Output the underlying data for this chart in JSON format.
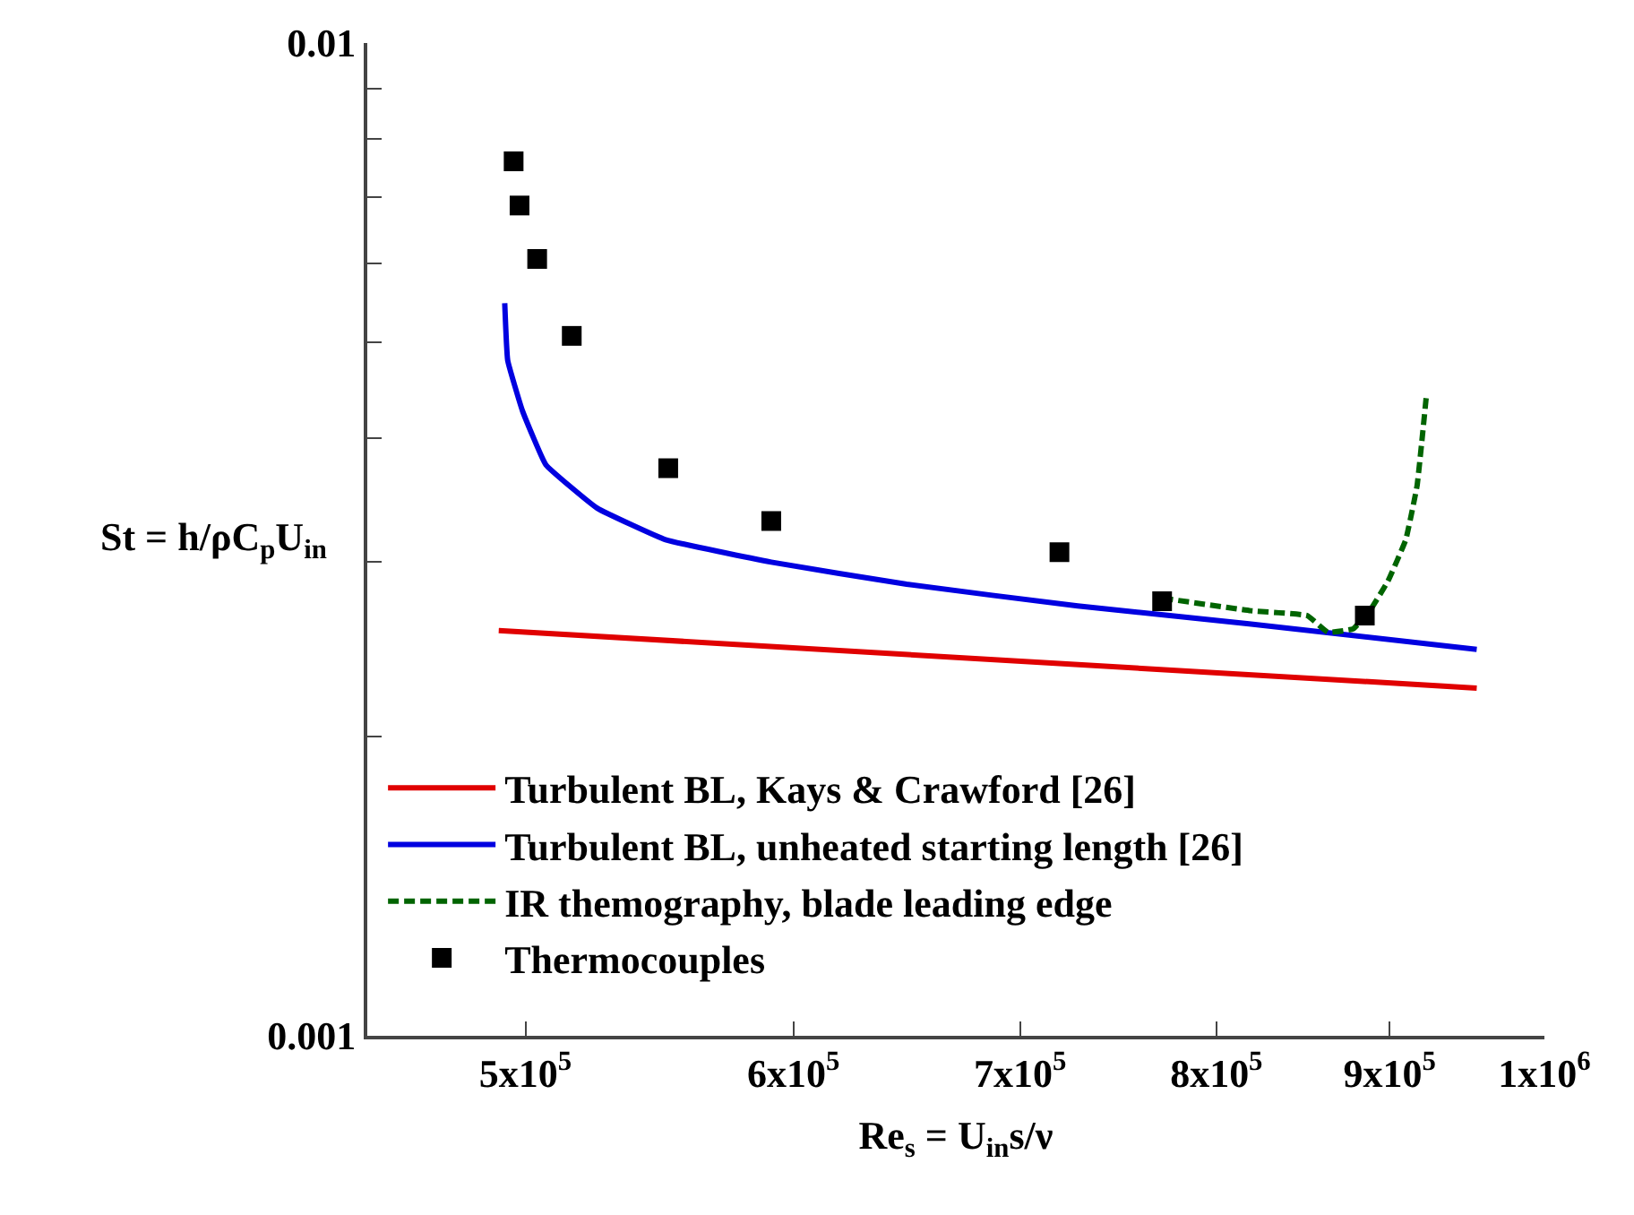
{
  "chart_data": {
    "type": "line",
    "xlabel": "Re$_{s}$ = U$_{in}$s/ν",
    "ylabel": "St = h/ρC$_{p}$U$_{in}$",
    "log": "xy",
    "legend": "bottom left",
    "xlim": [
      449000,
      1000000
    ],
    "xticks": [
      {
        "value": 500000,
        "label": "5x10$^{5}$"
      },
      {
        "value": 600000,
        "label": "6x10$^{5}$"
      },
      {
        "value": 700000,
        "label": "7x10$^{5}$"
      },
      {
        "value": 800000,
        "label": "8x10$^{5}$"
      },
      {
        "value": 900000,
        "label": "9x10$^{5}$"
      },
      {
        "value": 1000000,
        "label": "1x10$^{6}$"
      }
    ],
    "ylim": [
      0.001,
      0.01
    ],
    "yticks": [
      0.001,
      {
        "value": 0.002,
        "label": null
      },
      {
        "value": 0.003,
        "label": null
      },
      {
        "value": 0.004,
        "label": null
      },
      {
        "value": 0.005,
        "label": null
      },
      {
        "value": 0.006,
        "label": null
      },
      {
        "value": 0.007,
        "label": null
      },
      {
        "value": 0.008,
        "label": null
      },
      {
        "value": 0.009,
        "label": null
      },
      0.01
    ],
    "series": [
      {
        "name": "Turbulent BL, Kays & Crawford [26]",
        "color": "#e00000",
        "line_style": "solid",
        "x": [
          491000,
          955000
        ],
        "values": [
          0.00256,
          0.00224
        ]
      },
      {
        "name": "Turbulent BL, unheated starting length [26]",
        "color": "#0000e0",
        "line_style": "solid",
        "x": [
          493000,
          494000,
          499000,
          507000,
          525000,
          550000,
          591000,
          648000,
          728000,
          818000,
          955000
        ],
        "values": [
          0.00547,
          0.00479,
          0.00426,
          0.00376,
          0.0034,
          0.00316,
          0.003,
          0.00285,
          0.00271,
          0.0026,
          0.00245
        ]
      },
      {
        "name": "IR themography, blade leading edge",
        "color": "#006400",
        "line_style": "dashed",
        "x": [
          771000,
          819000,
          851000,
          863000,
          878000,
          888000,
          899000,
          910000,
          917000,
          920000,
          923000
        ],
        "values": [
          0.00276,
          0.00268,
          0.00265,
          0.00255,
          0.00257,
          0.00268,
          0.00287,
          0.00316,
          0.00358,
          0.00397,
          0.00444
        ]
      },
      {
        "name": "Thermocouples",
        "color": "#000000",
        "type": "scatter",
        "marker": "square",
        "x": [
          496000,
          498000,
          504000,
          516000,
          551000,
          591000,
          719000,
          771000,
          885000
        ],
        "values": [
          0.0076,
          0.00686,
          0.00606,
          0.00507,
          0.00373,
          0.0033,
          0.00307,
          0.00274,
          0.00265
        ]
      }
    ]
  }
}
